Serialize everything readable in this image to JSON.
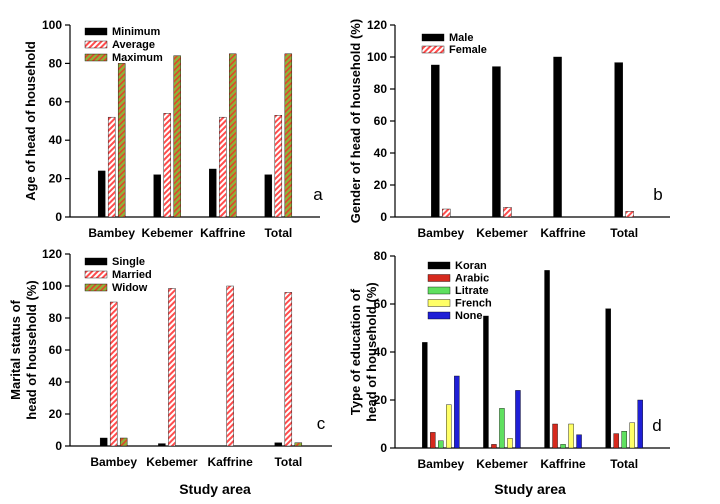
{
  "common_xlabels": [
    "Study area",
    "Study area"
  ],
  "chart_data": [
    {
      "panel": "a",
      "type": "bar",
      "categories": [
        "Bambey",
        "Kebemer",
        "Kaffrine",
        "Total"
      ],
      "ylabel": "Age of head of household",
      "ylim": [
        0,
        100
      ],
      "yticks": [
        0,
        20,
        40,
        60,
        80,
        100
      ],
      "legend_position": "top-left",
      "series": [
        {
          "name": "Minimum",
          "values": [
            24,
            22,
            25,
            22
          ],
          "fill": "#000000",
          "hatch": "none"
        },
        {
          "name": "Average",
          "values": [
            52,
            54,
            52,
            53
          ],
          "fill": "#ffffff",
          "hatch": "red"
        },
        {
          "name": "Maximum",
          "values": [
            80,
            84,
            85,
            85
          ],
          "fill": "#8db33a",
          "hatch": "greenred"
        }
      ]
    },
    {
      "panel": "b",
      "type": "bar",
      "categories": [
        "Bambey",
        "Kebemer",
        "Kaffrine",
        "Total"
      ],
      "ylabel": "Gender of head of household (%)",
      "ylim": [
        0,
        120
      ],
      "yticks": [
        0,
        20,
        40,
        60,
        80,
        100,
        120
      ],
      "legend_position": "top-left",
      "series": [
        {
          "name": "Male",
          "values": [
            95,
            94,
            100,
            96.5
          ],
          "fill": "#000000",
          "hatch": "none"
        },
        {
          "name": "Female",
          "values": [
            5,
            6,
            0,
            3.5
          ],
          "fill": "#ffffff",
          "hatch": "red"
        }
      ]
    },
    {
      "panel": "c",
      "type": "bar",
      "categories": [
        "Bambey",
        "Kebemer",
        "Kaffrine",
        "Total"
      ],
      "ylabel": [
        "Marital status of",
        "head of household (%)"
      ],
      "ylim": [
        0,
        120
      ],
      "yticks": [
        0,
        20,
        40,
        60,
        80,
        100,
        120
      ],
      "legend_position": "top-left",
      "series": [
        {
          "name": "Single",
          "values": [
            5,
            1.5,
            0,
            2
          ],
          "fill": "#000000",
          "hatch": "none"
        },
        {
          "name": "Married",
          "values": [
            90,
            98.5,
            100,
            96
          ],
          "fill": "#ffffff",
          "hatch": "red"
        },
        {
          "name": "Widow",
          "values": [
            5,
            0,
            0,
            2
          ],
          "fill": "#8db33a",
          "hatch": "greenred"
        }
      ]
    },
    {
      "panel": "d",
      "type": "bar",
      "categories": [
        "Bambey",
        "Kebemer",
        "Kaffrine",
        "Total"
      ],
      "ylabel": [
        "Type of education of",
        "head of household (%)"
      ],
      "ylim": [
        0,
        80
      ],
      "yticks": [
        0,
        20,
        40,
        60,
        80
      ],
      "legend_position": "top-left",
      "series": [
        {
          "name": "Koran",
          "values": [
            44,
            55,
            74,
            58
          ],
          "fill": "#000000",
          "hatch": "none"
        },
        {
          "name": "Arabic",
          "values": [
            6.5,
            1.5,
            10,
            6
          ],
          "fill": "#d62a1e",
          "hatch": "none"
        },
        {
          "name": "Litrate",
          "values": [
            3,
            16.5,
            1.5,
            7
          ],
          "fill": "#5fe05f",
          "hatch": "none"
        },
        {
          "name": "French",
          "values": [
            18,
            4,
            10,
            10.5
          ],
          "fill": "#ffff66",
          "hatch": "none"
        },
        {
          "name": "None",
          "values": [
            30,
            24,
            5.5,
            20
          ],
          "fill": "#1f1fd6",
          "hatch": "none"
        }
      ]
    }
  ]
}
